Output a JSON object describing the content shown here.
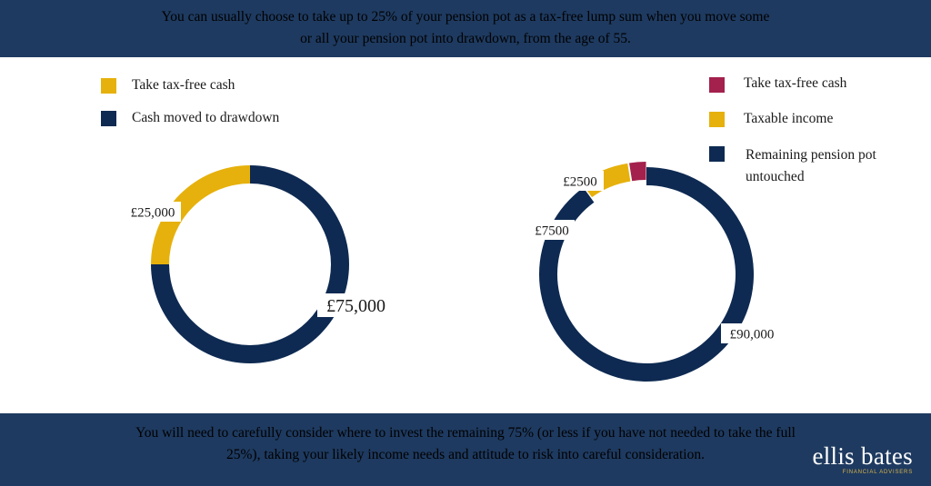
{
  "header": {
    "line1": "You can usually choose to take up to 25% of your pension pot as a tax-free lump sum when you move some",
    "line2": "or all your pension pot into drawdown, from the age of 55."
  },
  "footer": {
    "line1": "You will need to carefully consider where to invest the remaining 75% (or less if you have not needed to take the full",
    "line2": "25%), taking your likely income needs and attitude to risk into careful consideration."
  },
  "logo": {
    "name": "ellis bates",
    "tagline": "FINANCIAL ADVISERS"
  },
  "colors": {
    "navy": "#0e2a52",
    "gold": "#e6b10c",
    "crimson": "#a3214c",
    "band": "#1e3a60"
  },
  "chart_data": [
    {
      "type": "pie",
      "style": "donut",
      "legend_position": "top-left",
      "series": [
        {
          "name": "Take tax-free cash",
          "value": 25000,
          "label": "£25,000",
          "color": "#e6b10c"
        },
        {
          "name": "Cash moved to drawdown",
          "value": 75000,
          "label": "£75,000",
          "color": "#0e2a52"
        }
      ]
    },
    {
      "type": "pie",
      "style": "donut",
      "legend_position": "top-right",
      "series": [
        {
          "name": "Take tax-free cash",
          "value": 2500,
          "label": "£2500",
          "color": "#a3214c"
        },
        {
          "name": "Taxable income",
          "value": 7500,
          "label": "£7500",
          "color": "#e6b10c"
        },
        {
          "name": "Remaining pension pot untouched",
          "value": 90000,
          "label": "£90,000",
          "color": "#0e2a52"
        }
      ]
    }
  ]
}
